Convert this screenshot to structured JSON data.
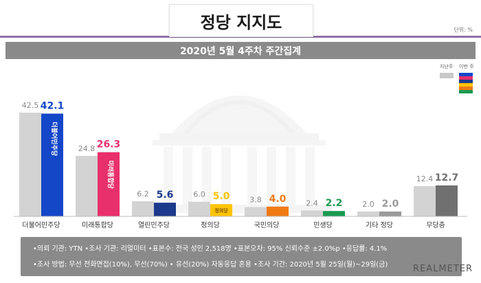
{
  "title": "정당 지지도",
  "unit": "단위: %",
  "subtitle": "2020년 5월 4주차 주간집계",
  "legend": {
    "prev": "지난주",
    "curr": "이번 주"
  },
  "chart_data": {
    "type": "bar",
    "categories": [
      "더불어민주당",
      "미래통합당",
      "열린민주당",
      "정의당",
      "국민의당",
      "민생당",
      "기타 정당",
      "무당층"
    ],
    "series": [
      {
        "name": "지난주",
        "values": [
          42.5,
          24.8,
          6.2,
          6.0,
          3.8,
          2.4,
          2.0,
          12.4
        ]
      },
      {
        "name": "이번 주",
        "values": [
          42.1,
          26.3,
          5.6,
          5.0,
          4.0,
          2.2,
          2.0,
          12.7
        ]
      }
    ],
    "colors": {
      "prev": "#d3d3d3",
      "curr": [
        "#1446c8",
        "#e8306c",
        "#1c3a8c",
        "#ffc400",
        "#f07a14",
        "#199a50",
        "#9a9a9a",
        "#707070"
      ]
    },
    "bar_logo_text": [
      "더불어민주당",
      "미래통합당",
      "",
      "정의당",
      "",
      "",
      "",
      ""
    ],
    "legend_position": "top-right"
  },
  "info": {
    "line1": "•의뢰 기관: YTN •조사 기관: 리얼미터 •표본수: 전국 성인 2,518명 •표본오차: 95% 신뢰수준 ±2.0%p •응답률: 4.1%",
    "line2": "•조사 방법: 무선 전화면접(10%), 무선(70%) • 유선(20%) 자동응답 혼용  •조사 기간: 2020년 5월 25일(월)~29일(금)"
  },
  "brand": "REALMETER"
}
